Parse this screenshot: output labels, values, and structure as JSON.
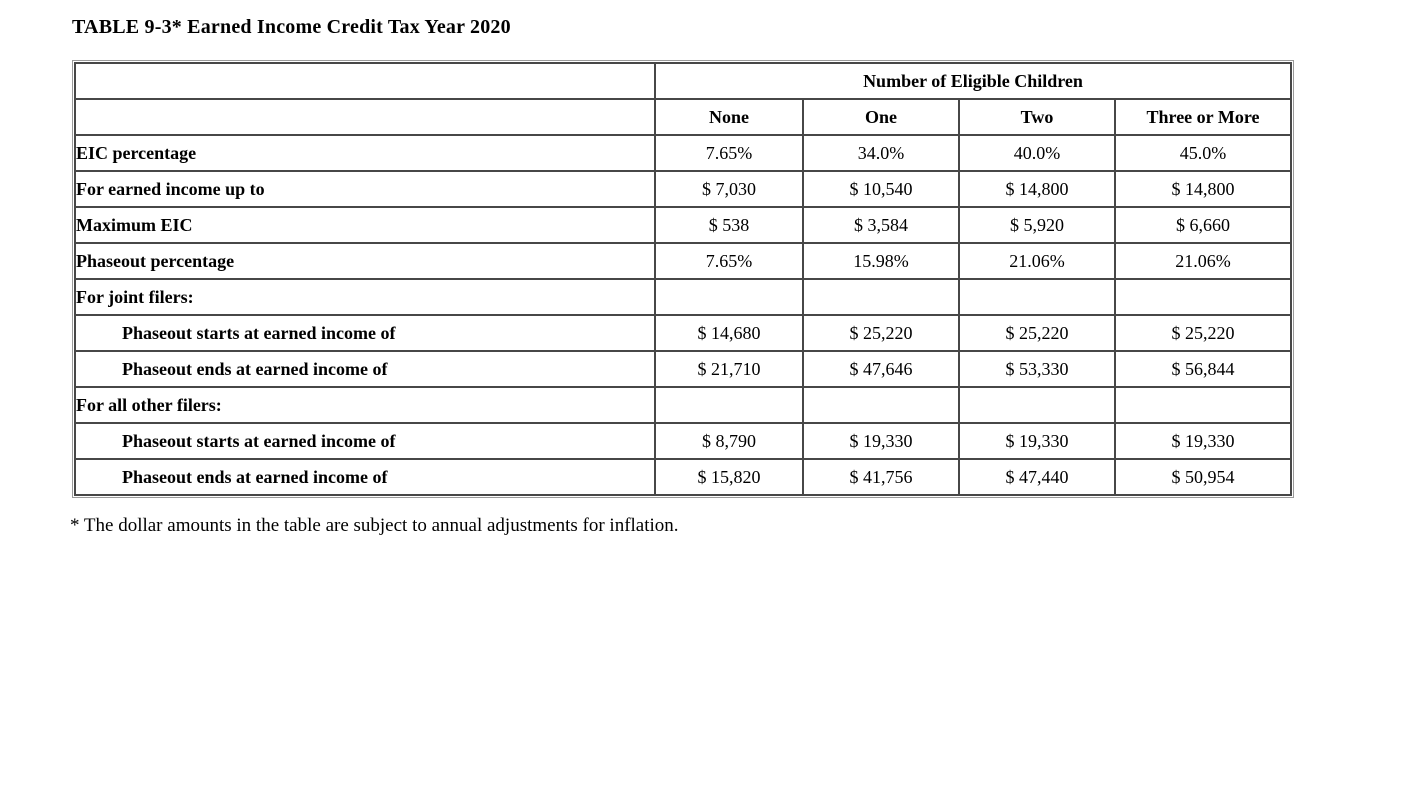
{
  "title": "TABLE 9-3* Earned Income Credit Tax Year 2020",
  "footnote": "* The dollar amounts in the table are subject to annual adjustments for inflation.",
  "colors": {
    "background": "#ffffff",
    "text": "#000000",
    "cell_border": "#474747",
    "outer_frame_border": "#9a9a9a"
  },
  "chart_data": {
    "type": "table",
    "title": "TABLE 9-3* Earned Income Credit Tax Year 2020",
    "group_header": "Number of Eligible Children",
    "columns": [
      "None",
      "One",
      "Two",
      "Three or More"
    ],
    "rows": [
      {
        "label": "EIC percentage",
        "indent": false,
        "values": [
          "7.65%",
          "34.0%",
          "40.0%",
          "45.0%"
        ]
      },
      {
        "label": "For earned income up to",
        "indent": false,
        "values": [
          "$ 7,030",
          "$ 10,540",
          "$ 14,800",
          "$ 14,800"
        ]
      },
      {
        "label": "Maximum EIC",
        "indent": false,
        "values": [
          "$ 538",
          "$ 3,584",
          "$ 5,920",
          "$ 6,660"
        ]
      },
      {
        "label": "Phaseout percentage",
        "indent": false,
        "values": [
          "7.65%",
          "15.98%",
          "21.06%",
          "21.06%"
        ]
      },
      {
        "label": "For joint filers:",
        "indent": false,
        "values": [
          "",
          "",
          "",
          ""
        ]
      },
      {
        "label": "Phaseout starts at earned income of",
        "indent": true,
        "values": [
          "$ 14,680",
          "$ 25,220",
          "$ 25,220",
          "$ 25,220"
        ]
      },
      {
        "label": "Phaseout ends at earned income of",
        "indent": true,
        "values": [
          "$ 21,710",
          "$ 47,646",
          "$ 53,330",
          "$ 56,844"
        ]
      },
      {
        "label": "For all other filers:",
        "indent": false,
        "values": [
          "",
          "",
          "",
          ""
        ]
      },
      {
        "label": "Phaseout starts at earned income of",
        "indent": true,
        "values": [
          "$ 8,790",
          "$ 19,330",
          "$ 19,330",
          "$ 19,330"
        ]
      },
      {
        "label": "Phaseout ends at earned income of",
        "indent": true,
        "values": [
          "$ 15,820",
          "$ 41,756",
          "$ 47,440",
          "$ 50,954"
        ]
      }
    ]
  }
}
